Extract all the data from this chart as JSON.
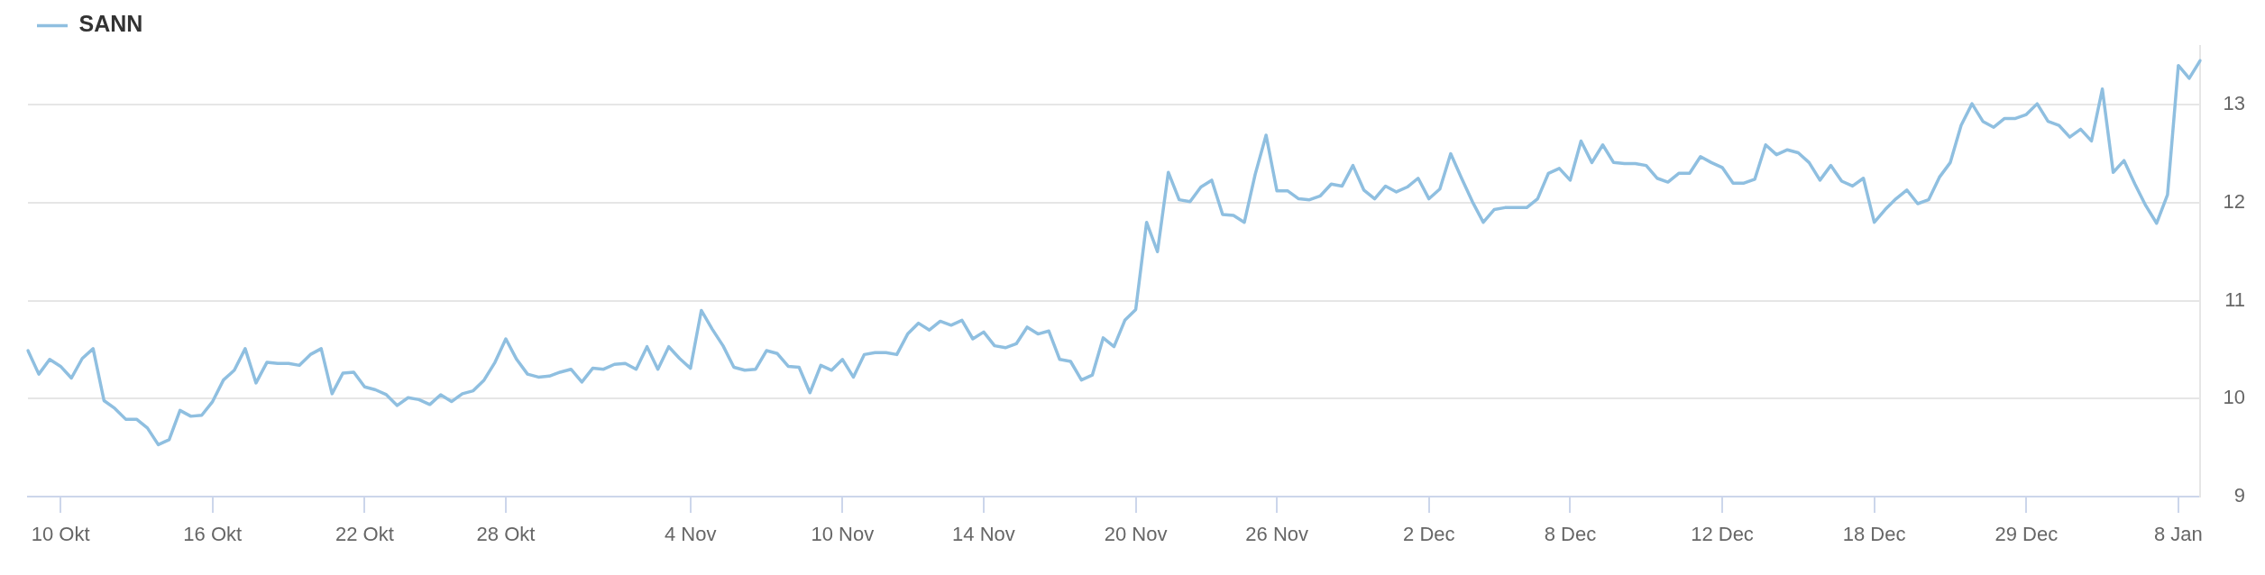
{
  "chart_data": {
    "type": "line",
    "categories": [
      null,
      null,
      null,
      "10 Okt",
      null,
      null,
      null,
      null,
      null,
      null,
      null,
      null,
      null,
      null,
      null,
      null,
      null,
      "16 Okt",
      null,
      null,
      null,
      null,
      null,
      null,
      null,
      null,
      null,
      null,
      null,
      null,
      null,
      "22 Okt",
      null,
      null,
      null,
      null,
      null,
      null,
      null,
      null,
      null,
      null,
      null,
      null,
      "28 Okt",
      null,
      null,
      null,
      null,
      null,
      null,
      null,
      null,
      null,
      null,
      null,
      null,
      null,
      null,
      null,
      null,
      "4 Nov",
      null,
      null,
      null,
      null,
      null,
      null,
      null,
      null,
      null,
      null,
      null,
      null,
      null,
      "10 Nov",
      null,
      null,
      null,
      null,
      null,
      null,
      null,
      null,
      null,
      null,
      null,
      null,
      "14 Nov",
      null,
      null,
      null,
      null,
      null,
      null,
      null,
      null,
      null,
      null,
      null,
      null,
      null,
      "20 Nov",
      null,
      null,
      null,
      null,
      null,
      null,
      null,
      null,
      null,
      null,
      null,
      null,
      "26 Nov",
      null,
      null,
      null,
      null,
      null,
      null,
      null,
      null,
      null,
      null,
      null,
      null,
      null,
      "2 Dec",
      null,
      null,
      null,
      null,
      null,
      null,
      null,
      null,
      null,
      null,
      null,
      null,
      "8 Dec",
      null,
      null,
      null,
      null,
      null,
      null,
      null,
      null,
      null,
      null,
      null,
      null,
      null,
      "12 Dec",
      null,
      null,
      null,
      null,
      null,
      null,
      null,
      null,
      null,
      null,
      null,
      null,
      null,
      "18 Dec",
      null,
      null,
      null,
      null,
      null,
      null,
      null,
      null,
      null,
      null,
      null,
      null,
      null,
      "29 Dec",
      null,
      null,
      null,
      null,
      null,
      null,
      null,
      null,
      null,
      null,
      null,
      null,
      null,
      "8 Jan",
      null,
      null
    ],
    "series": [
      {
        "name": "SANN",
        "color": "#8fbfe0",
        "values": [
          10.49,
          10.25,
          10.4,
          10.33,
          10.21,
          10.41,
          10.51,
          9.98,
          9.9,
          9.79,
          9.79,
          9.7,
          9.53,
          9.58,
          9.88,
          9.82,
          9.83,
          9.97,
          10.19,
          10.29,
          10.51,
          10.16,
          10.37,
          10.36,
          10.36,
          10.34,
          10.45,
          10.51,
          10.05,
          10.26,
          10.27,
          10.12,
          10.09,
          10.04,
          9.93,
          10.01,
          9.99,
          9.94,
          10.04,
          9.97,
          10.05,
          10.08,
          10.19,
          10.37,
          10.61,
          10.4,
          10.25,
          10.22,
          10.23,
          10.27,
          10.3,
          10.17,
          10.31,
          10.3,
          10.35,
          10.36,
          10.3,
          10.53,
          10.3,
          10.53,
          10.41,
          10.31,
          10.9,
          10.71,
          10.54,
          10.32,
          10.29,
          10.3,
          10.49,
          10.46,
          10.33,
          10.32,
          10.06,
          10.34,
          10.29,
          10.4,
          10.22,
          10.45,
          10.47,
          10.47,
          10.45,
          10.66,
          10.77,
          10.7,
          10.79,
          10.75,
          10.8,
          10.61,
          10.68,
          10.54,
          10.52,
          10.56,
          10.73,
          10.66,
          10.69,
          10.4,
          10.38,
          10.19,
          10.24,
          10.62,
          10.53,
          10.8,
          10.91,
          11.8,
          11.5,
          12.31,
          12.03,
          12.01,
          12.16,
          12.23,
          11.88,
          11.87,
          11.8,
          12.29,
          12.69,
          12.12,
          12.12,
          12.04,
          12.03,
          12.07,
          12.19,
          12.17,
          12.38,
          12.13,
          12.04,
          12.17,
          12.11,
          12.16,
          12.25,
          12.04,
          12.14,
          12.5,
          12.25,
          12.01,
          11.8,
          11.93,
          11.95,
          11.95,
          11.95,
          12.04,
          12.3,
          12.35,
          12.23,
          12.63,
          12.41,
          12.59,
          12.41,
          12.4,
          12.4,
          12.38,
          12.25,
          12.21,
          12.3,
          12.3,
          12.47,
          12.41,
          12.36,
          12.2,
          12.2,
          12.24,
          12.59,
          12.49,
          12.54,
          12.51,
          12.41,
          12.23,
          12.38,
          12.22,
          12.17,
          12.25,
          11.8,
          11.93,
          12.04,
          12.13,
          11.99,
          12.03,
          12.26,
          12.41,
          12.79,
          13.01,
          12.83,
          12.77,
          12.86,
          12.86,
          12.9,
          13.01,
          12.83,
          12.79,
          12.67,
          12.75,
          12.63,
          13.16,
          12.31,
          12.43,
          12.19,
          11.97,
          11.79,
          12.08,
          13.4,
          13.27,
          13.45
        ]
      }
    ],
    "ylim": [
      9,
      13.6
    ],
    "yticks": [
      9,
      10,
      11,
      12,
      13
    ],
    "grid": "y",
    "legend": "top left"
  }
}
